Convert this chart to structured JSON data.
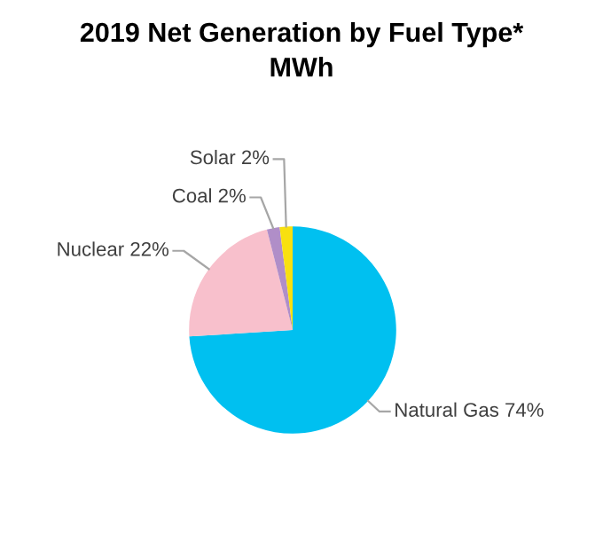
{
  "chart_data": {
    "type": "pie",
    "title": "2019 Net Generation by Fuel Type*",
    "subtitle": "MWh",
    "categories": [
      "Natural Gas",
      "Nuclear",
      "Coal",
      "Solar"
    ],
    "values": [
      74,
      22,
      2,
      2
    ],
    "value_labels": [
      "74%",
      "22%",
      "2%",
      "2%"
    ],
    "colors": [
      "#00c0f0",
      "#f8c0cc",
      "#b08ec8",
      "#f8e010"
    ],
    "legend": false
  }
}
